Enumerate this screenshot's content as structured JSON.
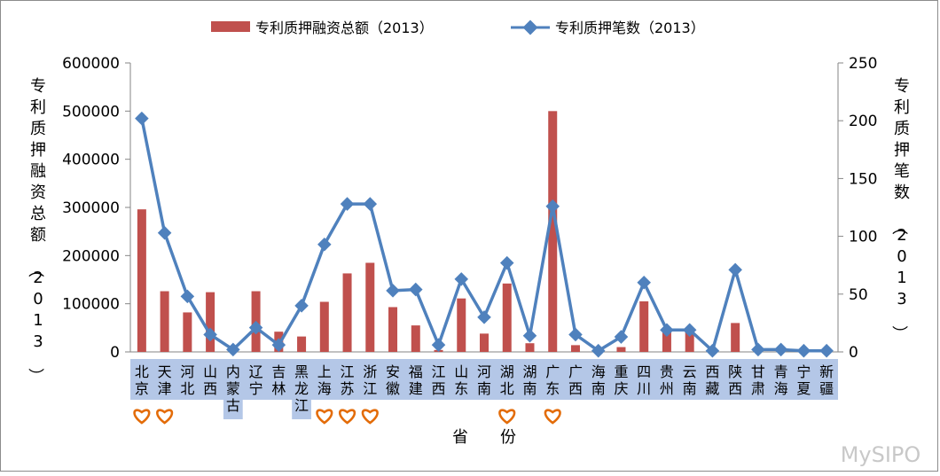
{
  "chart_data": {
    "type": "bar+line",
    "title": "",
    "categories": [
      "北京",
      "天津",
      "河北",
      "山西",
      "内蒙古",
      "辽宁",
      "吉林",
      "黑龙江",
      "上海",
      "江苏",
      "浙江",
      "安徽",
      "福建",
      "江西",
      "山东",
      "河南",
      "湖北",
      "湖南",
      "广东",
      "广西",
      "海南",
      "重庆",
      "四川",
      "贵州",
      "云南",
      "西藏",
      "陕西",
      "甘肃",
      "青海",
      "宁夏",
      "新疆"
    ],
    "series": [
      {
        "name": "专利质押融资总额（2013）",
        "type": "bar",
        "axis": "left",
        "color": "#c0504d",
        "values": [
          296000,
          126000,
          82000,
          124000,
          2000,
          126000,
          42000,
          32000,
          104000,
          163000,
          185000,
          93000,
          55000,
          4000,
          111000,
          38000,
          142000,
          18000,
          500000,
          14000,
          2000,
          10000,
          105000,
          50000,
          45000,
          1000,
          60000,
          3000,
          1000,
          1000,
          2000
        ]
      },
      {
        "name": "专利质押笔数（2013）",
        "type": "line",
        "axis": "right",
        "color": "#4f81bd",
        "values": [
          202,
          103,
          48,
          15,
          2,
          21,
          6,
          40,
          93,
          128,
          128,
          53,
          54,
          6,
          63,
          30,
          77,
          14,
          126,
          15,
          1,
          13,
          60,
          19,
          19,
          1,
          71,
          2,
          2,
          1,
          1
        ]
      }
    ],
    "xlabel": "省　　份",
    "ylabel_left": "专利质押融资总额（2013）",
    "ylabel_right": "专利质押笔数（2013）",
    "ylim_left": [
      0,
      600000
    ],
    "ylim_right": [
      0,
      250
    ],
    "yticks_left": [
      "0",
      "100000",
      "200000",
      "300000",
      "400000",
      "500000",
      "600000"
    ],
    "yticks_right": [
      "0",
      "50",
      "100",
      "150",
      "200",
      "250"
    ],
    "grid": false,
    "legend": "top",
    "highlighted_categories": [
      "北京",
      "天津",
      "上海",
      "江苏",
      "浙江",
      "湖北",
      "广东"
    ],
    "highlight_marker": "heart-icon",
    "highlight_color": "#e36c09",
    "category_band_color": "#b4c7e7",
    "watermark": "MySIPO"
  }
}
